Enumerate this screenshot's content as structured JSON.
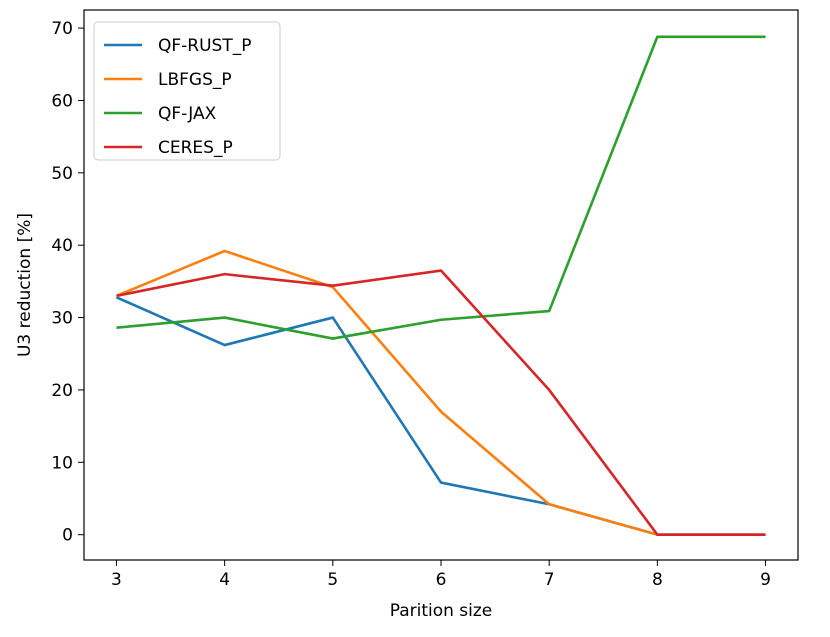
{
  "chart_data": {
    "type": "line",
    "title": "",
    "xlabel": "Parition size",
    "ylabel": "U3 reduction [%]",
    "x": [
      3,
      4,
      5,
      6,
      7,
      8,
      9
    ],
    "xlim": [
      2.7,
      9.3
    ],
    "ylim": [
      -3.5,
      72.5
    ],
    "xticks": [
      3,
      4,
      5,
      6,
      7,
      8,
      9
    ],
    "yticks": [
      0,
      10,
      20,
      30,
      40,
      50,
      60,
      70
    ],
    "grid": false,
    "legend_position": "top-left",
    "series": [
      {
        "name": "QF-RUST_P",
        "color": "#1f77b4",
        "values": [
          32.8,
          26.2,
          30.0,
          7.2,
          4.2,
          0.0,
          0.0
        ]
      },
      {
        "name": "LBFGS_P",
        "color": "#ff7f0e",
        "values": [
          33.0,
          39.2,
          34.2,
          17.0,
          4.2,
          0.0,
          0.0
        ]
      },
      {
        "name": "QF-JAX",
        "color": "#2ca02c",
        "values": [
          28.6,
          30.0,
          27.1,
          29.7,
          30.9,
          68.8,
          68.8
        ]
      },
      {
        "name": "CERES_P",
        "color": "#d62728",
        "values": [
          33.0,
          36.0,
          34.4,
          36.5,
          20.0,
          0.0,
          0.0
        ]
      }
    ]
  }
}
